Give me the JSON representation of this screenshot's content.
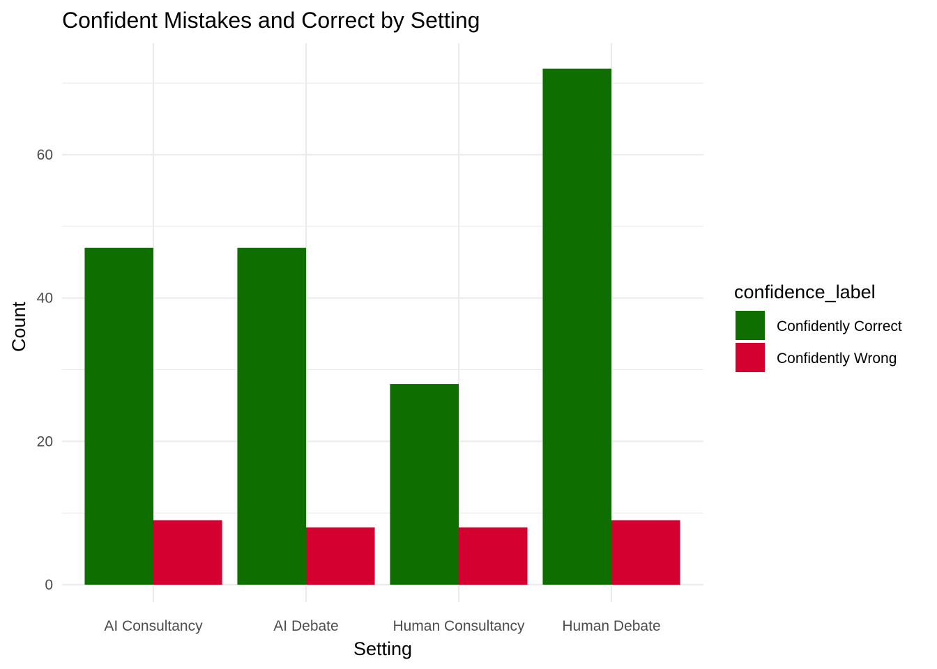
{
  "chart_data": {
    "type": "bar",
    "title": "Confident Mistakes and Correct by Setting",
    "xlabel": "Setting",
    "ylabel": "Count",
    "categories": [
      "AI Consultancy",
      "AI Debate",
      "Human Consultancy",
      "Human Debate"
    ],
    "series": [
      {
        "name": "Confidently Correct",
        "color": "#0f6e00",
        "values": [
          47,
          47,
          28,
          72
        ]
      },
      {
        "name": "Confidently Wrong",
        "color": "#d40030",
        "values": [
          9,
          8,
          8,
          9
        ]
      }
    ],
    "ylim": [
      0,
      75
    ],
    "yticks": [
      0,
      20,
      40,
      60
    ],
    "grid": true,
    "legend": {
      "title": "confidence_label",
      "placement": "right"
    }
  }
}
